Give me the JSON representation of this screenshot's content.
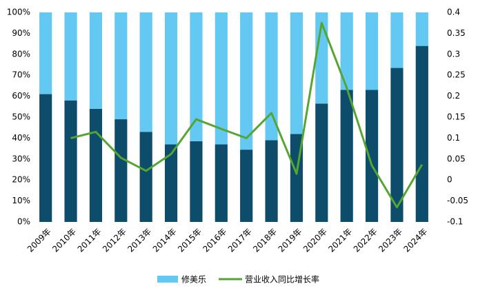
{
  "chart_data": {
    "type": "stacked_bar_line",
    "categories": [
      "2009年",
      "2010年",
      "2011年",
      "2012年",
      "2013年",
      "2014年",
      "2015年",
      "2016年",
      "2017年",
      "2018年",
      "2019年",
      "2020年",
      "2021年",
      "2022年",
      "2023年",
      "2024年"
    ],
    "series": [
      {
        "color": "#0d4d6b",
        "values": [
          61,
          58,
          54,
          49,
          43,
          37,
          38.5,
          37,
          34.5,
          39,
          42,
          56.5,
          63,
          63,
          73.5,
          84
        ]
      },
      {
        "name": "修美乐",
        "color": "#63c9f2",
        "values": [
          39,
          42,
          46,
          51,
          57,
          63,
          61.5,
          63,
          65.5,
          61,
          58,
          43.5,
          37,
          37,
          26.5,
          16
        ]
      },
      {
        "name": "营业收入同比增长率",
        "type": "line",
        "axis": "y2",
        "color": "#55a532",
        "values": [
          null,
          0.1,
          0.115,
          0.053,
          0.022,
          0.062,
          0.145,
          0.122,
          0.1,
          0.16,
          0.015,
          0.375,
          0.22,
          0.035,
          -0.065,
          0.037
        ]
      }
    ],
    "ylim": [
      0,
      100
    ],
    "yticks": [
      {
        "value": 0,
        "label": "0%"
      },
      {
        "value": 10,
        "label": "10%"
      },
      {
        "value": 20,
        "label": "20%"
      },
      {
        "value": 30,
        "label": "30%"
      },
      {
        "value": 40,
        "label": "40%"
      },
      {
        "value": 50,
        "label": "50%"
      },
      {
        "value": 60,
        "label": "60%"
      },
      {
        "value": 70,
        "label": "70%"
      },
      {
        "value": 80,
        "label": "80%"
      },
      {
        "value": 90,
        "label": "90%"
      },
      {
        "value": 100,
        "label": "100%"
      }
    ],
    "y2lim": [
      -0.1,
      0.4
    ],
    "y2ticks": [
      -0.1,
      -0.05,
      0,
      0.05,
      0.1,
      0.15,
      0.2,
      0.25,
      0.3,
      0.35,
      0.4
    ]
  }
}
